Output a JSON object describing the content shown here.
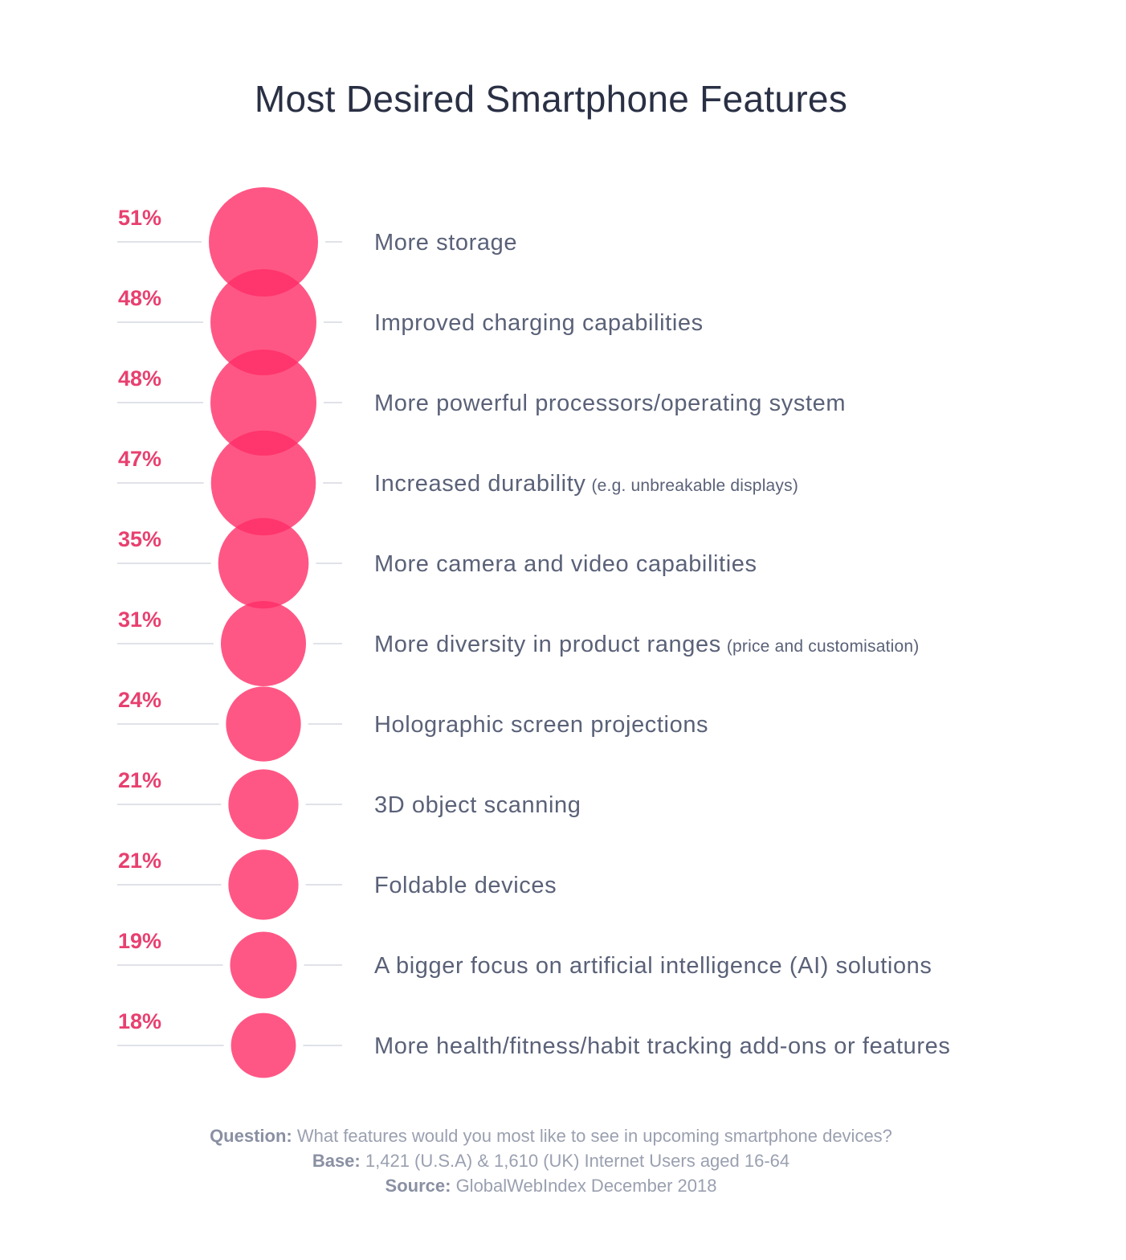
{
  "chart_data": {
    "type": "bubble",
    "title": "Most Desired Smartphone Features",
    "value_unit": "%",
    "categories": [
      {
        "label": "More storage",
        "note": "",
        "value": 51,
        "display": "51%"
      },
      {
        "label": "Improved charging capabilities",
        "note": "",
        "value": 48,
        "display": "48%"
      },
      {
        "label": "More powerful processors/operating system",
        "note": "",
        "value": 48,
        "display": "48%"
      },
      {
        "label": "Increased durability",
        "note": "(e.g. unbreakable displays)",
        "value": 47,
        "display": "47%"
      },
      {
        "label": "More camera and video capabilities",
        "note": "",
        "value": 35,
        "display": "35%"
      },
      {
        "label": "More diversity in product ranges",
        "note": "(price and customisation)",
        "value": 31,
        "display": "31%"
      },
      {
        "label": "Holographic screen projections",
        "note": "",
        "value": 24,
        "display": "24%"
      },
      {
        "label": "3D object scanning",
        "note": "",
        "value": 21,
        "display": "21%"
      },
      {
        "label": "Foldable devices",
        "note": "",
        "value": 21,
        "display": "21%"
      },
      {
        "label": "A bigger focus on artificial intelligence (AI) solutions",
        "note": "",
        "value": 19,
        "display": "19%"
      },
      {
        "label": "More health/fitness/habit tracking add-ons or features",
        "note": "",
        "value": 18,
        "display": "18%"
      }
    ],
    "colors": {
      "bubble": "#ff2d67",
      "value_text": "#e8406f",
      "label_text": "#5a6178",
      "guide_line": "#d6d9e2"
    }
  },
  "footer": {
    "question_label": "Question:",
    "question_text": "What features would you most like to see in upcoming smartphone devices?",
    "base_label": "Base:",
    "base_text": "1,421 (U.S.A) & 1,610 (UK) Internet Users aged 16-64",
    "source_label": "Source:",
    "source_text": "GlobalWebIndex December 2018"
  }
}
